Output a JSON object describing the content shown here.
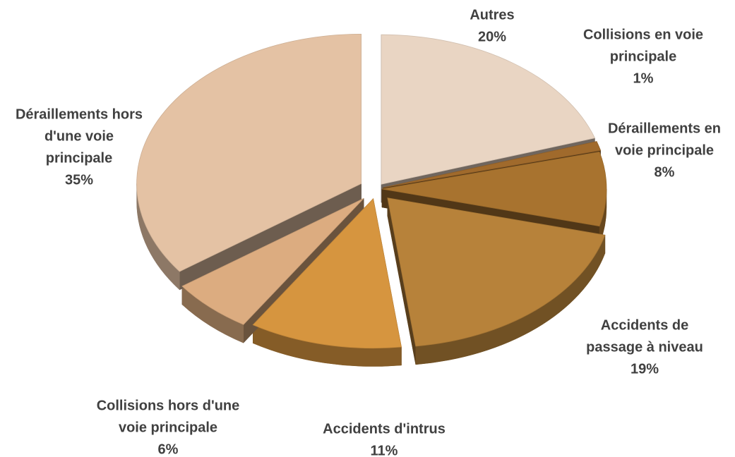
{
  "chart_data": {
    "type": "pie",
    "title": "",
    "style": "3d-exploded",
    "slices": [
      {
        "label": [
          "Autres"
        ],
        "value": 20,
        "value_label": "20%",
        "color": "#e9d5c3"
      },
      {
        "label": [
          "Collisions en voie",
          "principale"
        ],
        "value": 1,
        "value_label": "1%",
        "color": "#a06a2c"
      },
      {
        "label": [
          "Déraillements en",
          "voie principale"
        ],
        "value": 8,
        "value_label": "8%",
        "color": "#a8732f"
      },
      {
        "label": [
          "Accidents de",
          "passage à niveau"
        ],
        "value": 19,
        "value_label": "19%",
        "color": "#b7823a"
      },
      {
        "label": [
          "Accidents d'intrus"
        ],
        "value": 11,
        "value_label": "11%",
        "color": "#d6953f"
      },
      {
        "label": [
          "Collisions hors d'une",
          "voie principale"
        ],
        "value": 6,
        "value_label": "6%",
        "color": "#dcac80"
      },
      {
        "label": [
          "Déraillements hors",
          "d'une voie",
          "principale"
        ],
        "value": 35,
        "value_label": "35%",
        "color": "#e4c2a4"
      }
    ]
  }
}
